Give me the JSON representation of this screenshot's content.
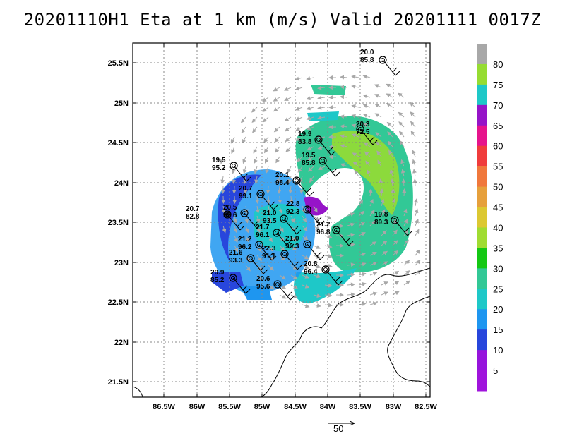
{
  "title": "20201110H1 Eta at 1 km (m/s) Valid 20201111 0017Z",
  "lat_labels": [
    "25.5N",
    "25N",
    "24.5N",
    "24N",
    "23.5N",
    "23N",
    "22.5N",
    "22N",
    "21.5N"
  ],
  "lon_labels": [
    "86.5W",
    "86W",
    "85.5W",
    "85W",
    "84.5W",
    "84W",
    "83.5W",
    "83W",
    "82.5W"
  ],
  "colorbar": {
    "labels": [
      "80",
      "75",
      "70",
      "65",
      "60",
      "55",
      "50",
      "45",
      "40",
      "35",
      "30",
      "25",
      "20",
      "15",
      "10",
      "5"
    ],
    "colors": [
      "#a8a8a8",
      "#96dc32",
      "#1ec8c8",
      "#9614c8",
      "#e6148c",
      "#f03c3c",
      "#f0783c",
      "#e6a03c",
      "#dcc832",
      "#a0dc32",
      "#14c814",
      "#32c896",
      "#1ec8c8",
      "#1e96f0",
      "#2846dc",
      "#9614dc",
      "#a014dc"
    ]
  },
  "stations": [
    {
      "id": "s1",
      "speed": "20.0",
      "dir": "85.8"
    },
    {
      "id": "s2",
      "speed": "20.3",
      "dir": "72.5"
    },
    {
      "id": "s3",
      "speed": "19.9",
      "dir": "83.8"
    },
    {
      "id": "s4",
      "speed": "19.5",
      "dir": "85.8"
    },
    {
      "id": "s5",
      "speed": "19.5",
      "dir": "95.2"
    },
    {
      "id": "s6",
      "speed": "20.7",
      "dir": "99.1"
    },
    {
      "id": "s7",
      "speed": "20.1",
      "dir": "98.4"
    },
    {
      "id": "s8",
      "speed": "22.8",
      "dir": "92.3"
    },
    {
      "id": "s9",
      "speed": "20.7",
      "dir": "82.8"
    },
    {
      "id": "s10",
      "speed": "20.5",
      "dir": "99.6"
    },
    {
      "id": "s11",
      "speed": "21.0",
      "dir": "93.5"
    },
    {
      "id": "s12",
      "speed": "21.7",
      "dir": "96.1"
    },
    {
      "id": "s13",
      "speed": "19.8",
      "dir": "89.3"
    },
    {
      "id": "s14",
      "speed": "21.2",
      "dir": "96.8"
    },
    {
      "id": "s15",
      "speed": "21.2",
      "dir": "96.2"
    },
    {
      "id": "s16",
      "speed": "21.0",
      "dir": "96.3"
    },
    {
      "id": "s17",
      "speed": "22.3",
      "dir": "91.1"
    },
    {
      "id": "s18",
      "speed": "21.6",
      "dir": "93.3"
    },
    {
      "id": "s19",
      "speed": "20.8",
      "dir": "96.4"
    },
    {
      "id": "s20",
      "speed": "20.9",
      "dir": "85.2"
    },
    {
      "id": "s21",
      "speed": "20.6",
      "dir": "95.6"
    }
  ],
  "scale_arrow_label": "50"
}
